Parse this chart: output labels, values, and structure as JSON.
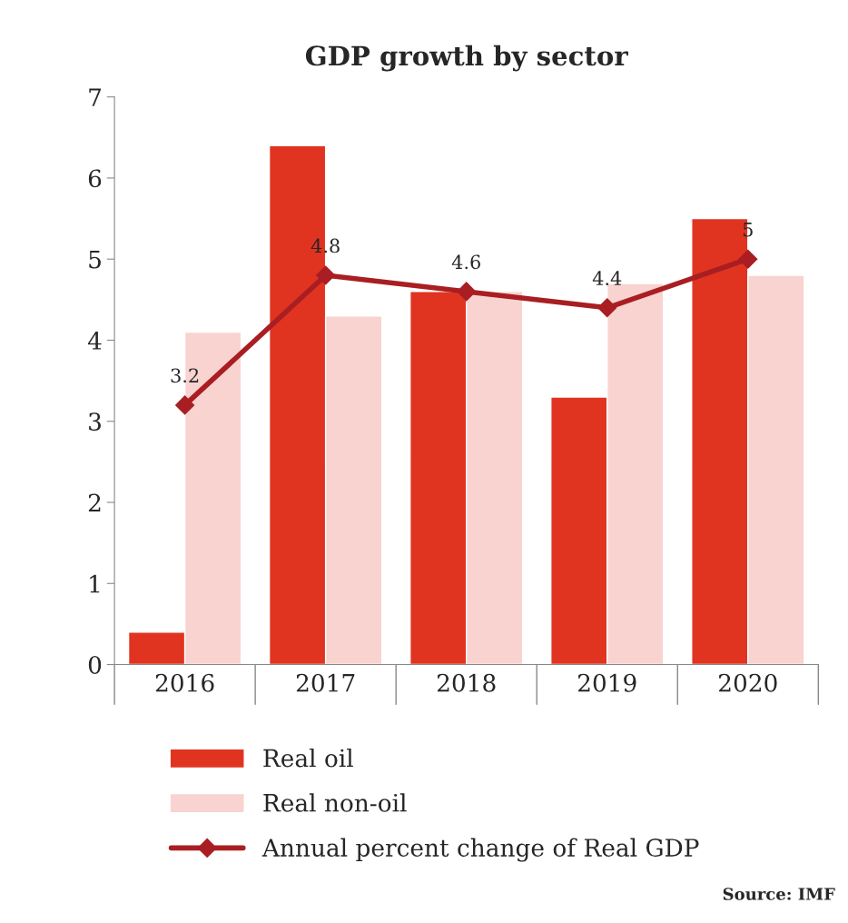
{
  "chart_data": {
    "type": "bar",
    "title": "GDP growth by sector",
    "categories": [
      "2016",
      "2017",
      "2018",
      "2019",
      "2020"
    ],
    "series": [
      {
        "name": "Real oil",
        "color": "#e03421",
        "values": [
          0.4,
          6.4,
          4.6,
          3.3,
          5.5
        ]
      },
      {
        "name": "Real non-oil",
        "color": "#f8d3cf",
        "values": [
          4.1,
          4.3,
          4.6,
          4.7,
          4.8
        ]
      },
      {
        "name": "Annual percent change of Real GDP",
        "type": "line",
        "color": "#a91e22",
        "marker": "diamond",
        "values": [
          3.2,
          4.8,
          4.6,
          4.4,
          5
        ],
        "value_labels": [
          "3.2",
          "4.8",
          "4.6",
          "4.4",
          "5"
        ]
      }
    ],
    "ylim": [
      0,
      7
    ],
    "yticks": [
      0,
      1,
      2,
      3,
      4,
      5,
      6,
      7
    ],
    "grid": false,
    "legend": "bottom",
    "annotations": [
      "Source: IMF"
    ]
  }
}
